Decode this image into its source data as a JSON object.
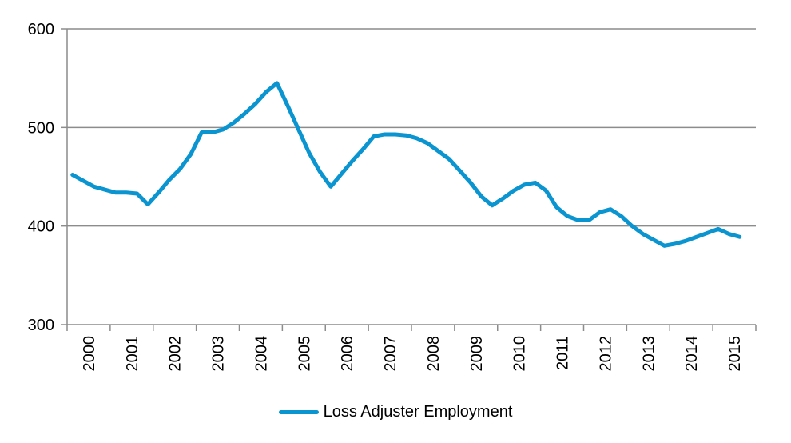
{
  "chart_data": {
    "type": "line",
    "title": "",
    "xlabel": "",
    "ylabel": "",
    "ylim": [
      300,
      600
    ],
    "yticks": [
      "300",
      "400",
      "500",
      "600"
    ],
    "year_labels": [
      "2000",
      "2001",
      "2002",
      "2003",
      "2004",
      "2005",
      "2006",
      "2007",
      "2008",
      "2009",
      "2010",
      "2011",
      "2012",
      "2013",
      "2014",
      "2015"
    ],
    "grid": true,
    "legend_position": "bottom",
    "series": [
      {
        "name": "Loss Adjuster Employment",
        "color": "#0a94d0",
        "points_per_year": 4,
        "values": [
          452,
          446,
          440,
          437,
          434,
          434,
          433,
          422,
          434,
          447,
          458,
          473,
          495,
          495,
          498,
          505,
          514,
          524,
          536,
          545,
          522,
          498,
          474,
          455,
          440,
          453,
          466,
          478,
          491,
          493,
          493,
          492,
          489,
          484,
          476,
          468,
          456,
          444,
          430,
          421,
          428,
          436,
          442,
          444,
          436,
          419,
          410,
          406,
          406,
          414,
          417,
          410,
          400,
          392,
          386,
          380,
          382,
          385,
          389,
          393,
          397,
          392,
          389
        ]
      }
    ]
  }
}
